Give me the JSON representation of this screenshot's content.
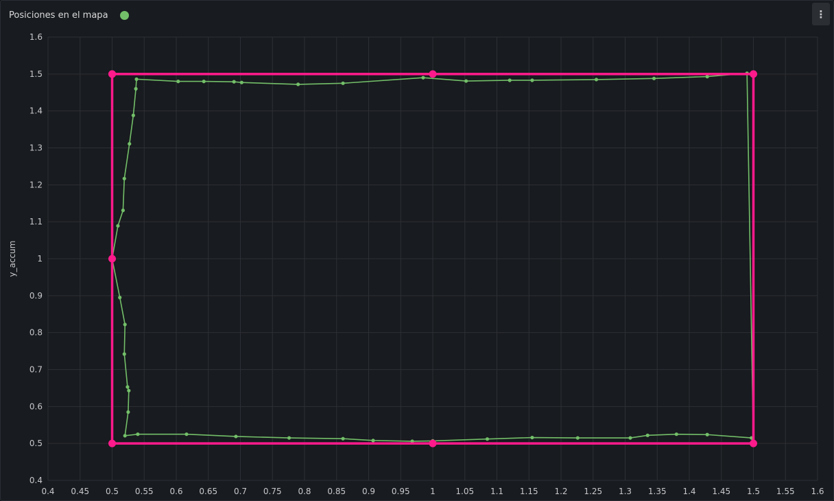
{
  "panel": {
    "title": "Posiciones en el mapa",
    "legend_color": "#73bf69"
  },
  "chart_data": {
    "type": "scatter",
    "title": "Posiciones en el mapa",
    "xlabel": "",
    "ylabel": "y_accum",
    "xlim": [
      0.4,
      1.6
    ],
    "ylim": [
      0.4,
      1.6
    ],
    "x_ticks": [
      0.4,
      0.45,
      0.5,
      0.55,
      0.6,
      0.65,
      0.7,
      0.75,
      0.8,
      0.85,
      0.9,
      0.95,
      1,
      1.05,
      1.1,
      1.15,
      1.2,
      1.25,
      1.3,
      1.35,
      1.4,
      1.45,
      1.5,
      1.55,
      1.6
    ],
    "y_ticks": [
      0.4,
      0.5,
      0.6,
      0.7,
      0.8,
      0.9,
      1,
      1.1,
      1.2,
      1.3,
      1.4,
      1.5,
      1.6
    ],
    "grid": true,
    "series": [
      {
        "color": "#73bf69",
        "x": [
          0.5,
          0.512,
          0.52,
          0.519,
          0.524,
          0.526,
          0.525,
          0.52,
          0.54,
          0.616,
          0.693,
          0.776,
          0.86,
          0.907,
          0.968,
          1.0,
          1.085,
          1.155,
          1.226,
          1.308,
          1.335,
          1.38,
          1.428,
          1.497,
          1.5,
          1.49,
          1.428,
          1.345,
          1.255,
          1.155,
          1.12,
          1.052,
          0.985,
          0.86,
          0.79,
          0.702,
          0.69,
          0.643,
          0.603,
          0.538,
          0.537,
          0.533,
          0.527,
          0.519,
          0.517,
          0.509,
          0.5
        ],
        "y": [
          1.0,
          0.895,
          0.822,
          0.742,
          0.653,
          0.643,
          0.585,
          0.521,
          0.525,
          0.525,
          0.519,
          0.515,
          0.513,
          0.508,
          0.506,
          0.507,
          0.512,
          0.516,
          0.515,
          0.515,
          0.522,
          0.525,
          0.524,
          0.515,
          0.5,
          1.502,
          1.493,
          1.488,
          1.485,
          1.483,
          1.483,
          1.481,
          1.49,
          1.475,
          1.472,
          1.477,
          1.479,
          1.48,
          1.48,
          1.486,
          1.46,
          1.388,
          1.311,
          1.217,
          1.131,
          1.089,
          1.0
        ]
      },
      {
        "color": "#ff1a8c",
        "x": [
          0.5,
          1.0,
          1.5,
          1.5,
          1.0,
          0.5,
          0.5,
          0.5
        ],
        "y": [
          1.5,
          1.5,
          1.5,
          0.5,
          0.5,
          0.5,
          1.0,
          1.5
        ]
      }
    ]
  }
}
